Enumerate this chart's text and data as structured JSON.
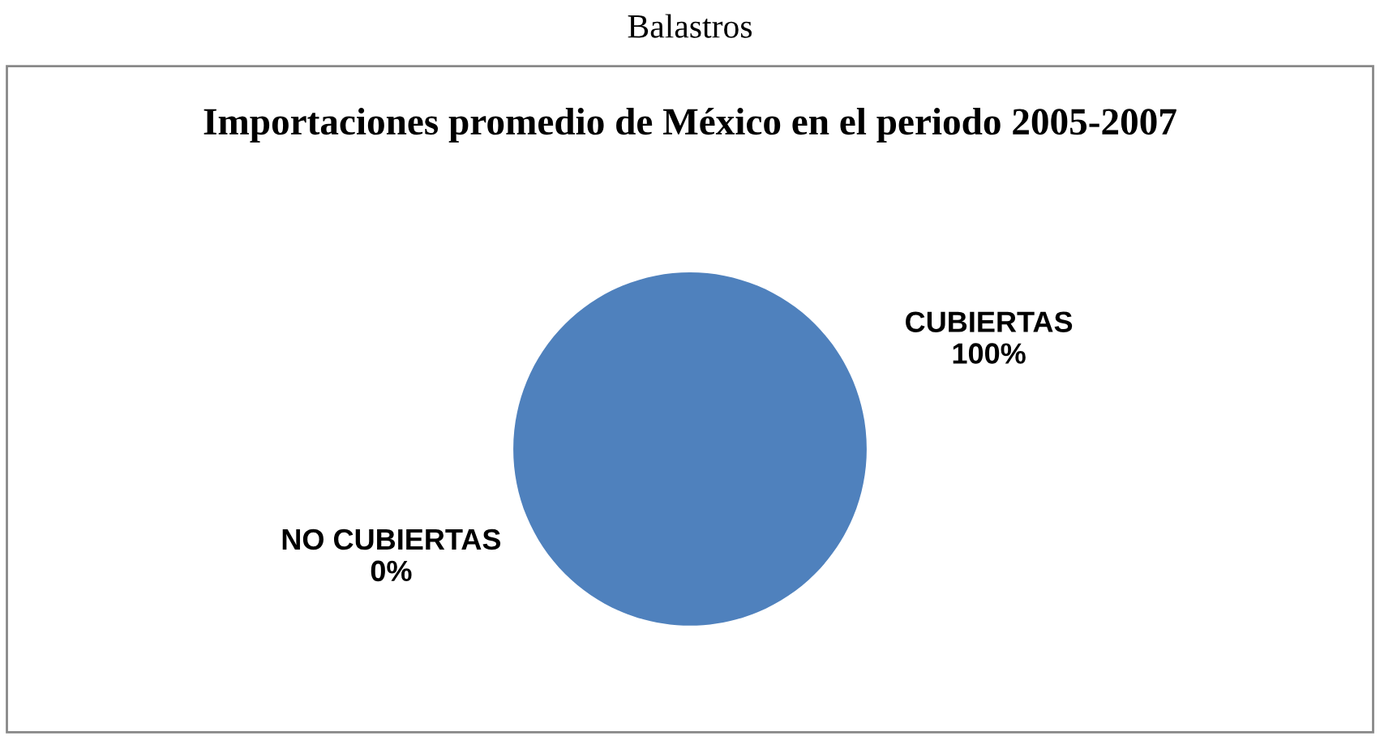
{
  "chart_data": {
    "type": "pie",
    "title": "Importaciones promedio de México en el periodo 2005-2007",
    "annotations": [
      "Balastros"
    ],
    "categories": [
      "NO CUBIERTAS",
      "CUBIERTAS"
    ],
    "values": [
      0,
      100
    ],
    "colors": [
      "#c0504d",
      "#4f81bd"
    ],
    "value_labels": [
      "0%",
      "100%"
    ],
    "legend": false
  }
}
